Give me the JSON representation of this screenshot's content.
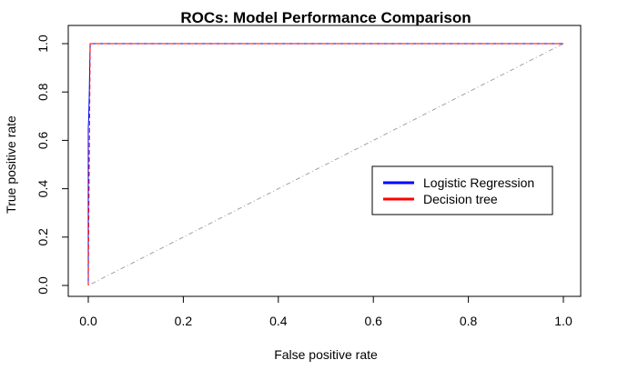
{
  "chart_data": {
    "type": "line",
    "title": "ROCs: Model Performance Comparison",
    "xlabel": "False positive rate",
    "ylabel": "True positive rate",
    "xlim": [
      0,
      1
    ],
    "ylim": [
      0,
      1
    ],
    "xticks": [
      "0.0",
      "0.2",
      "0.4",
      "0.6",
      "0.8",
      "1.0"
    ],
    "yticks": [
      "0.0",
      "0.2",
      "0.4",
      "0.6",
      "0.8",
      "1.0"
    ],
    "grid": false,
    "legend_position": "center-right",
    "series": [
      {
        "name": "Logistic Regression",
        "color": "#0000ff",
        "dash": "solid",
        "points": [
          [
            0,
            0
          ],
          [
            0,
            0.65
          ],
          [
            0.001,
            0.7
          ],
          [
            0.002,
            0.78
          ],
          [
            0.003,
            0.9
          ],
          [
            0.004,
            1.0
          ],
          [
            1.0,
            1.0
          ]
        ]
      },
      {
        "name": "Decision tree",
        "color": "#ff0000",
        "dash": "dashed",
        "points": [
          [
            0,
            0
          ],
          [
            0.004,
            1.0
          ],
          [
            1.0,
            1.0
          ]
        ]
      }
    ],
    "reference_line": {
      "color": "#a0a0a0",
      "dash": "dotdash",
      "points": [
        [
          0,
          0
        ],
        [
          1,
          1
        ]
      ]
    }
  }
}
